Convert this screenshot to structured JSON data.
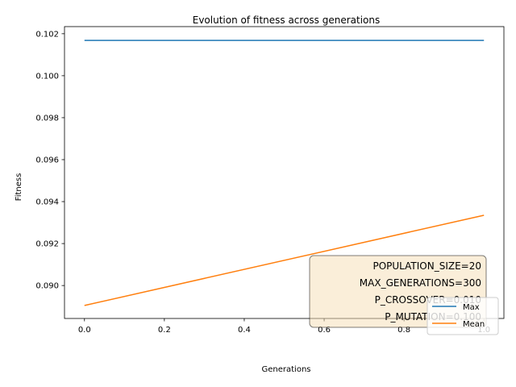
{
  "chart_data": {
    "type": "line",
    "title": "Evolution of fitness across generations",
    "xlabel": "Generations",
    "ylabel": "Fitness",
    "xlim": [
      -0.05,
      1.05
    ],
    "ylim": [
      0.08843,
      0.10234
    ],
    "xticks": [
      0.0,
      0.2,
      0.4,
      0.6,
      0.8,
      1.0
    ],
    "xtick_labels": [
      "0.0",
      "0.2",
      "0.4",
      "0.6",
      "0.8",
      "1.0"
    ],
    "yticks": [
      0.09,
      0.092,
      0.094,
      0.096,
      0.098,
      0.1,
      0.102
    ],
    "ytick_labels": [
      "0.090",
      "0.092",
      "0.094",
      "0.096",
      "0.098",
      "0.100",
      "0.102"
    ],
    "grid": false,
    "legend_position": "lower-right",
    "series": [
      {
        "name": "Max",
        "color": "#1f77b4",
        "x": [
          0,
          1
        ],
        "y": [
          0.10168,
          0.10168
        ]
      },
      {
        "name": "Mean",
        "color": "#ff7f0e",
        "x": [
          0,
          1
        ],
        "y": [
          0.08905,
          0.09335
        ]
      }
    ],
    "annotation": {
      "lines": [
        "POPULATION_SIZE=20",
        "MAX_GENERATIONS=300",
        "P_CROSSOVER=0.010",
        "P_MUTATION=0.100"
      ],
      "box_color": "#f5deb3",
      "position": "lower-right"
    }
  }
}
